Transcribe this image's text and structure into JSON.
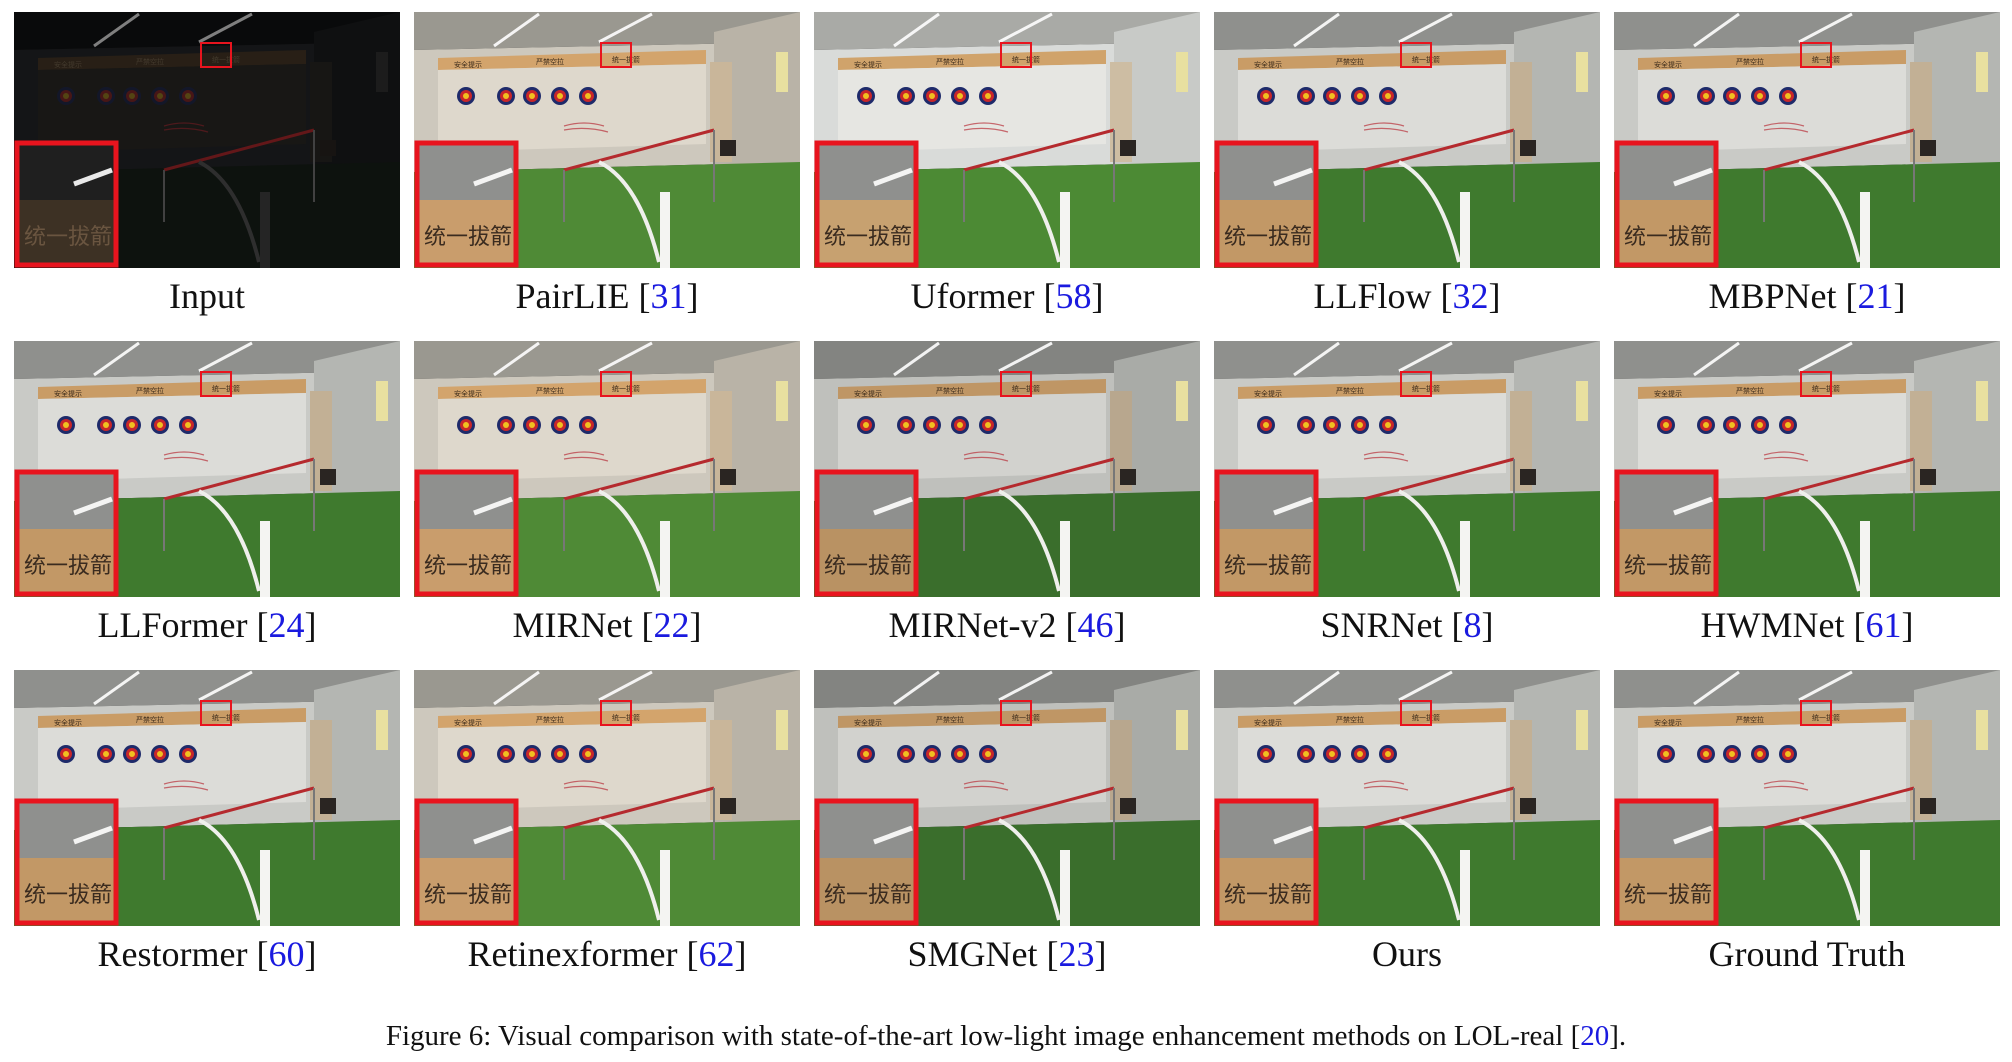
{
  "figure": {
    "caption": {
      "prefix": "Figure 6: Visual comparison with state-of-the-art low-light image enhancement methods on LOL-real [",
      "ref": "20",
      "suffix": "]."
    },
    "inset_text": "统一拔箭",
    "sign_left": "安全提示",
    "sign_mid": "严禁空拉",
    "panels": [
      {
        "name": "Input",
        "ref": "",
        "tone": "dark"
      },
      {
        "name": "PairLIE",
        "ref": "31",
        "tone": "warm"
      },
      {
        "name": "Uformer",
        "ref": "58",
        "tone": "bright"
      },
      {
        "name": "LLFlow",
        "ref": "32",
        "tone": "normal"
      },
      {
        "name": "MBPNet",
        "ref": "21",
        "tone": "normal"
      },
      {
        "name": "LLFormer",
        "ref": "24",
        "tone": "normal"
      },
      {
        "name": "MIRNet",
        "ref": "22",
        "tone": "warm"
      },
      {
        "name": "MIRNet-v2",
        "ref": "46",
        "tone": "muted"
      },
      {
        "name": "SNRNet",
        "ref": "8",
        "tone": "normal"
      },
      {
        "name": "HWMNet",
        "ref": "61",
        "tone": "normal"
      },
      {
        "name": "Restormer",
        "ref": "60",
        "tone": "normal"
      },
      {
        "name": "Retinexformer",
        "ref": "62",
        "tone": "warm"
      },
      {
        "name": "SMGNet",
        "ref": "23",
        "tone": "muted"
      },
      {
        "name": "Ours",
        "ref": "",
        "tone": "normal"
      },
      {
        "name": "Ground Truth",
        "ref": "",
        "tone": "normal"
      }
    ]
  },
  "colors": {
    "zoom_box": "#e8141e",
    "ref_link": "#1a1adf",
    "floor_green": "#3f7a2e",
    "wall_grey": "#c9cac6"
  }
}
